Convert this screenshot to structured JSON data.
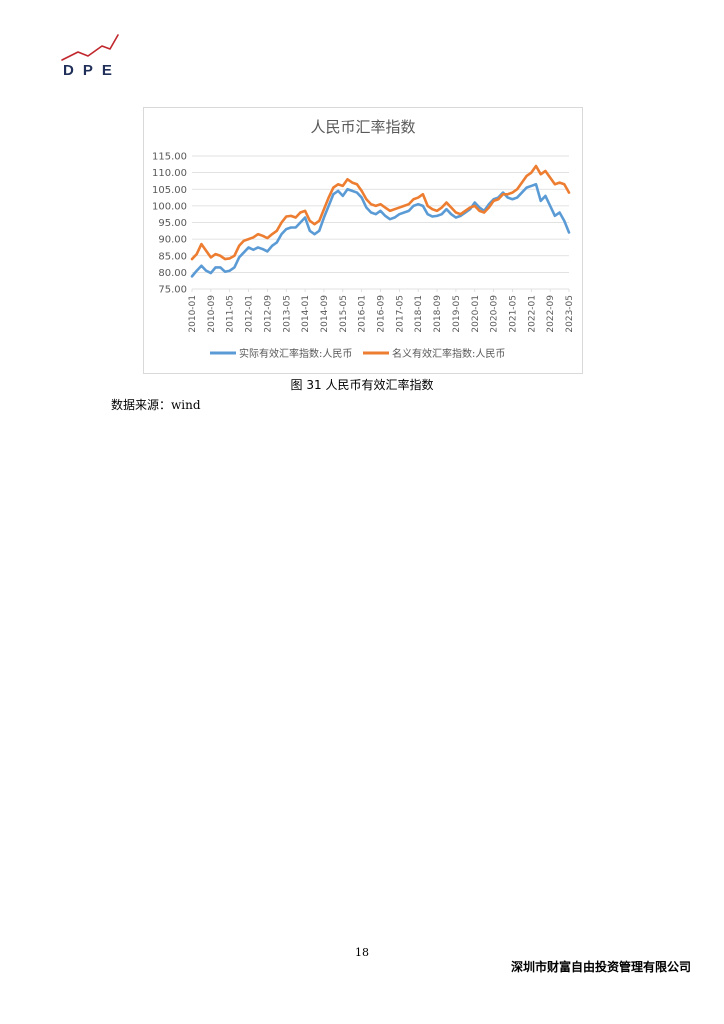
{
  "header": {
    "logo_text": "DPE"
  },
  "figure": {
    "caption": "图 31 人民币有效汇率指数"
  },
  "source": "数据来源：wind",
  "footer": {
    "page_number": "18",
    "company": "深圳市财富自由投资管理有限公司"
  },
  "colors": {
    "real": "#5b9bd5",
    "nominal": "#ed7d31",
    "grid": "#d9d9d9",
    "axis_text": "#595959",
    "title": "#595959",
    "logo_red": "#c0272d",
    "logo_text": "#1f2f5a"
  },
  "chart_data": {
    "type": "line",
    "title": "人民币汇率指数",
    "ylim": [
      75,
      115
    ],
    "yticks": [
      "75.00",
      "80.00",
      "85.00",
      "90.00",
      "95.00",
      "100.00",
      "105.00",
      "110.00",
      "115.00"
    ],
    "xticks": [
      "2010-01",
      "2010-09",
      "2011-05",
      "2012-01",
      "2012-09",
      "2013-05",
      "2014-01",
      "2014-09",
      "2015-05",
      "2016-01",
      "2016-09",
      "2017-05",
      "2018-01",
      "2018-09",
      "2019-05",
      "2020-01",
      "2020-09",
      "2021-05",
      "2022-01",
      "2022-09",
      "2023-05"
    ],
    "grid": true,
    "legend_position": "bottom",
    "x_start": "2010-01",
    "x_end": "2023-05",
    "series": [
      {
        "name": "实际有效汇率指数:人民币",
        "color": "#5b9bd5",
        "points": [
          [
            "2010-01",
            78.8
          ],
          [
            "2010-03",
            80.5
          ],
          [
            "2010-05",
            82.0
          ],
          [
            "2010-07",
            80.5
          ],
          [
            "2010-09",
            79.8
          ],
          [
            "2010-11",
            81.5
          ],
          [
            "2011-01",
            81.5
          ],
          [
            "2011-03",
            80.2
          ],
          [
            "2011-05",
            80.5
          ],
          [
            "2011-07",
            81.5
          ],
          [
            "2011-09",
            84.5
          ],
          [
            "2011-11",
            86.0
          ],
          [
            "2012-01",
            87.5
          ],
          [
            "2012-03",
            86.8
          ],
          [
            "2012-05",
            87.5
          ],
          [
            "2012-07",
            87.0
          ],
          [
            "2012-09",
            86.3
          ],
          [
            "2012-11",
            88.0
          ],
          [
            "2013-01",
            89.0
          ],
          [
            "2013-03",
            91.5
          ],
          [
            "2013-05",
            93.0
          ],
          [
            "2013-07",
            93.5
          ],
          [
            "2013-09",
            93.5
          ],
          [
            "2013-11",
            95.0
          ],
          [
            "2014-01",
            96.5
          ],
          [
            "2014-03",
            92.5
          ],
          [
            "2014-05",
            91.5
          ],
          [
            "2014-07",
            92.5
          ],
          [
            "2014-09",
            96.5
          ],
          [
            "2014-11",
            100.0
          ],
          [
            "2015-01",
            103.5
          ],
          [
            "2015-03",
            104.5
          ],
          [
            "2015-05",
            103.0
          ],
          [
            "2015-07",
            105.0
          ],
          [
            "2015-09",
            104.5
          ],
          [
            "2015-11",
            104.0
          ],
          [
            "2016-01",
            102.5
          ],
          [
            "2016-03",
            99.5
          ],
          [
            "2016-05",
            98.0
          ],
          [
            "2016-07",
            97.5
          ],
          [
            "2016-09",
            98.5
          ],
          [
            "2016-11",
            97.0
          ],
          [
            "2017-01",
            96.0
          ],
          [
            "2017-03",
            96.5
          ],
          [
            "2017-05",
            97.5
          ],
          [
            "2017-07",
            98.0
          ],
          [
            "2017-09",
            98.5
          ],
          [
            "2017-11",
            100.0
          ],
          [
            "2018-01",
            100.5
          ],
          [
            "2018-03",
            100.0
          ],
          [
            "2018-05",
            97.5
          ],
          [
            "2018-07",
            96.8
          ],
          [
            "2018-09",
            97.0
          ],
          [
            "2018-11",
            97.5
          ],
          [
            "2019-01",
            99.0
          ],
          [
            "2019-03",
            97.5
          ],
          [
            "2019-05",
            96.5
          ],
          [
            "2019-07",
            97.0
          ],
          [
            "2019-09",
            98.0
          ],
          [
            "2019-11",
            99.0
          ],
          [
            "2020-01",
            101.0
          ],
          [
            "2020-03",
            99.5
          ],
          [
            "2020-05",
            98.5
          ],
          [
            "2020-07",
            100.5
          ],
          [
            "2020-09",
            102.0
          ],
          [
            "2020-11",
            102.5
          ],
          [
            "2021-01",
            104.0
          ],
          [
            "2021-03",
            102.5
          ],
          [
            "2021-05",
            102.0
          ],
          [
            "2021-07",
            102.5
          ],
          [
            "2021-09",
            104.0
          ],
          [
            "2021-11",
            105.5
          ],
          [
            "2022-01",
            106.0
          ],
          [
            "2022-03",
            106.5
          ],
          [
            "2022-05",
            101.5
          ],
          [
            "2022-07",
            103.0
          ],
          [
            "2022-09",
            100.0
          ],
          [
            "2022-11",
            97.0
          ],
          [
            "2023-01",
            98.0
          ],
          [
            "2023-03",
            95.5
          ],
          [
            "2023-05",
            92.0
          ]
        ]
      },
      {
        "name": "名义有效汇率指数:人民币",
        "color": "#ed7d31",
        "points": [
          [
            "2010-01",
            84.0
          ],
          [
            "2010-03",
            85.5
          ],
          [
            "2010-05",
            88.5
          ],
          [
            "2010-07",
            86.5
          ],
          [
            "2010-09",
            84.5
          ],
          [
            "2010-11",
            85.5
          ],
          [
            "2011-01",
            85.0
          ],
          [
            "2011-03",
            84.0
          ],
          [
            "2011-05",
            84.2
          ],
          [
            "2011-07",
            85.0
          ],
          [
            "2011-09",
            88.0
          ],
          [
            "2011-11",
            89.5
          ],
          [
            "2012-01",
            90.0
          ],
          [
            "2012-03",
            90.5
          ],
          [
            "2012-05",
            91.5
          ],
          [
            "2012-07",
            91.0
          ],
          [
            "2012-09",
            90.3
          ],
          [
            "2012-11",
            91.5
          ],
          [
            "2013-01",
            92.5
          ],
          [
            "2013-03",
            95.0
          ],
          [
            "2013-05",
            96.8
          ],
          [
            "2013-07",
            97.0
          ],
          [
            "2013-09",
            96.5
          ],
          [
            "2013-11",
            98.0
          ],
          [
            "2014-01",
            98.5
          ],
          [
            "2014-03",
            95.5
          ],
          [
            "2014-05",
            94.5
          ],
          [
            "2014-07",
            95.5
          ],
          [
            "2014-09",
            99.0
          ],
          [
            "2014-11",
            102.5
          ],
          [
            "2015-01",
            105.5
          ],
          [
            "2015-03",
            106.5
          ],
          [
            "2015-05",
            106.0
          ],
          [
            "2015-07",
            108.0
          ],
          [
            "2015-09",
            107.0
          ],
          [
            "2015-11",
            106.5
          ],
          [
            "2016-01",
            104.5
          ],
          [
            "2016-03",
            102.0
          ],
          [
            "2016-05",
            100.5
          ],
          [
            "2016-07",
            100.0
          ],
          [
            "2016-09",
            100.5
          ],
          [
            "2016-11",
            99.5
          ],
          [
            "2017-01",
            98.5
          ],
          [
            "2017-03",
            99.0
          ],
          [
            "2017-05",
            99.5
          ],
          [
            "2017-07",
            100.0
          ],
          [
            "2017-09",
            100.5
          ],
          [
            "2017-11",
            102.0
          ],
          [
            "2018-01",
            102.5
          ],
          [
            "2018-03",
            103.5
          ],
          [
            "2018-05",
            100.0
          ],
          [
            "2018-07",
            99.0
          ],
          [
            "2018-09",
            98.5
          ],
          [
            "2018-11",
            99.5
          ],
          [
            "2019-01",
            101.0
          ],
          [
            "2019-03",
            99.5
          ],
          [
            "2019-05",
            98.0
          ],
          [
            "2019-07",
            97.5
          ],
          [
            "2019-09",
            98.5
          ],
          [
            "2019-11",
            99.5
          ],
          [
            "2020-01",
            100.0
          ],
          [
            "2020-03",
            98.5
          ],
          [
            "2020-05",
            98.0
          ],
          [
            "2020-07",
            99.5
          ],
          [
            "2020-09",
            101.5
          ],
          [
            "2020-11",
            102.0
          ],
          [
            "2021-01",
            103.5
          ],
          [
            "2021-03",
            103.5
          ],
          [
            "2021-05",
            104.0
          ],
          [
            "2021-07",
            105.0
          ],
          [
            "2021-09",
            107.0
          ],
          [
            "2021-11",
            109.0
          ],
          [
            "2022-01",
            110.0
          ],
          [
            "2022-03",
            112.0
          ],
          [
            "2022-05",
            109.5
          ],
          [
            "2022-07",
            110.5
          ],
          [
            "2022-09",
            108.5
          ],
          [
            "2022-11",
            106.5
          ],
          [
            "2023-01",
            107.0
          ],
          [
            "2023-03",
            106.5
          ],
          [
            "2023-05",
            104.0
          ]
        ]
      }
    ]
  }
}
